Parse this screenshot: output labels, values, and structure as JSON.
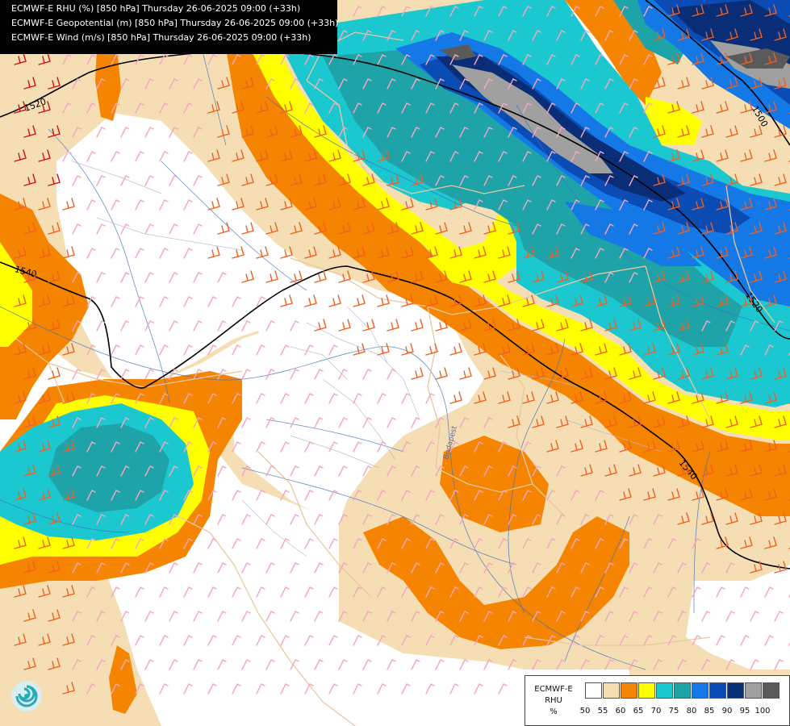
{
  "header": {
    "lines": [
      "ECMWF-E RHU (%) [850 hPa] Thursday 26-06-2025 09:00 (+33h)",
      "ECMWF-E Geopotential (m) [850 hPa] Thursday 26-06-2025 09:00 (+33h)",
      "ECMWF-E Wind (m/s) [850 hPa] Thursday 26-06-2025 09:00 (+33h)"
    ]
  },
  "contours": {
    "label_1520_a": "1520",
    "label_1540_a": "1540",
    "label_1500": "1500",
    "label_1520_b": "1520",
    "label_1540_b": "1540"
  },
  "places": {
    "budapest": "Budapest"
  },
  "legend": {
    "title_line1": "ECMWF-E",
    "title_line2": "RHU",
    "title_line3": "%",
    "ticks": [
      "50",
      "55",
      "60",
      "65",
      "70",
      "75",
      "80",
      "85",
      "90",
      "95",
      "100"
    ],
    "colors": [
      "#ffffff",
      "#f5deb3",
      "#f58400",
      "#ffff00",
      "#1cc8d0",
      "#1ea4a8",
      "#1478e6",
      "#0a4cb4",
      "#0a2d78",
      "#a0a0a0",
      "#5a5a5a"
    ]
  },
  "colors": {
    "rhu_55": "#f5deb3",
    "rhu_60": "#f58400",
    "rhu_65": "#ffff00",
    "rhu_70": "#1cc8d0",
    "rhu_75": "#1ea4a8",
    "rhu_80": "#1478e6",
    "rhu_85": "#0a4cb4",
    "rhu_90": "#0a2d78",
    "rhu_95": "#a0a0a0",
    "rhu_100": "#5a5a5a",
    "wind_barb_light": "#f4a6c0",
    "wind_barb_moderate": "#f06020",
    "wind_barb_strong": "#d01010",
    "contour_line": "#000000",
    "country_border": "#e8c8a0",
    "river": "#4070c0"
  },
  "logo": {
    "icon": "swirl-logo-icon"
  }
}
